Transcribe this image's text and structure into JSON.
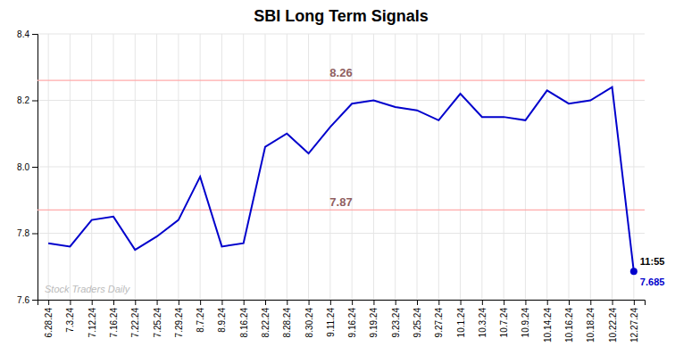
{
  "chart_data": {
    "type": "line",
    "title": "SBI Long Term Signals",
    "categories": [
      "6.28.24",
      "7.3.24",
      "7.12.24",
      "7.16.24",
      "7.22.24",
      "7.25.24",
      "7.29.24",
      "8.7.24",
      "8.9.24",
      "8.16.24",
      "8.22.24",
      "8.28.24",
      "8.30.24",
      "9.11.24",
      "9.16.24",
      "9.19.24",
      "9.23.24",
      "9.25.24",
      "9.27.24",
      "10.1.24",
      "10.3.24",
      "10.7.24",
      "10.9.24",
      "10.14.24",
      "10.16.24",
      "10.18.24",
      "10.22.24",
      "12.27.24"
    ],
    "values": [
      7.77,
      7.76,
      7.84,
      7.85,
      7.75,
      7.79,
      7.84,
      7.97,
      7.76,
      7.77,
      8.06,
      8.1,
      8.04,
      8.12,
      8.19,
      8.2,
      8.18,
      8.17,
      8.14,
      8.22,
      8.15,
      8.15,
      8.14,
      8.23,
      8.19,
      8.2,
      8.24,
      7.685
    ],
    "color": "#0000cc",
    "ylim": [
      7.6,
      8.4
    ],
    "yticks": [
      7.6,
      7.8,
      {
        "value": 8.0,
        "label": "8.0"
      },
      8.2,
      8.4
    ],
    "grid": true,
    "reference_lines": [
      {
        "value": 8.26,
        "label": "8.26",
        "color": "#ffaaaa"
      },
      {
        "value": 7.87,
        "label": "7.87",
        "color": "#ffaaaa"
      }
    ],
    "annotations": [
      {
        "text": "11:55",
        "x": "12.27.24",
        "y": 7.685,
        "marker": "circle"
      },
      {
        "text": "7.685",
        "x": "12.27.24",
        "y": 7.685,
        "color": "#0000cc"
      }
    ],
    "watermark": "Stock Traders Daily"
  }
}
